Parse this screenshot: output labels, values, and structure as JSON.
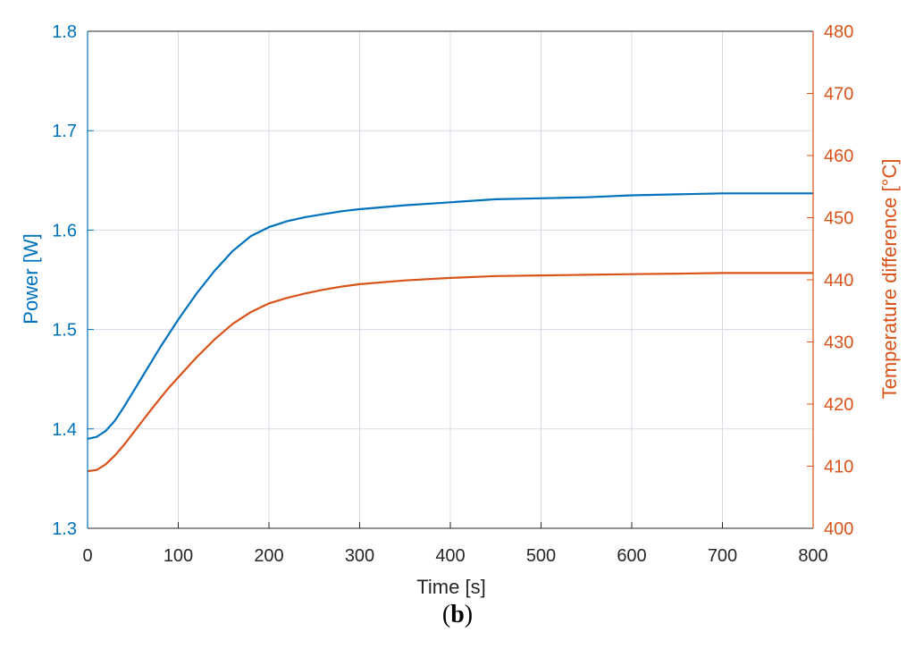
{
  "caption": {
    "open": "(",
    "letter": "b",
    "close": ")"
  },
  "colors": {
    "left": "#0072BD",
    "right": "#D95319",
    "grid": "#D5DCE6",
    "axis": "#262626"
  },
  "chart_data": {
    "type": "line",
    "xlabel": "Time [s]",
    "ylabel_left": "Power [W]",
    "ylabel_right": "Temperature difference [°C]",
    "xlim": [
      0,
      800
    ],
    "ylim_left": [
      1.3,
      1.8
    ],
    "ylim_right": [
      400,
      480
    ],
    "x_ticks": [
      "0",
      "100",
      "200",
      "300",
      "400",
      "500",
      "600",
      "700",
      "800"
    ],
    "y_left_ticks": [
      "1.3",
      "1.4",
      "1.5",
      "1.6",
      "1.7",
      "1.8"
    ],
    "y_right_ticks": [
      "400",
      "410",
      "420",
      "430",
      "440",
      "450",
      "460",
      "470",
      "480"
    ],
    "grid": true,
    "series": [
      {
        "name": "",
        "axis": "left",
        "color": "#0072BD",
        "x": [
          0,
          10,
          20,
          30,
          40,
          50,
          60,
          70,
          80,
          90,
          100,
          120,
          140,
          160,
          180,
          200,
          220,
          240,
          260,
          280,
          300,
          350,
          400,
          450,
          500,
          550,
          600,
          650,
          700,
          750,
          800
        ],
        "y": [
          1.39,
          1.392,
          1.398,
          1.408,
          1.422,
          1.437,
          1.452,
          1.467,
          1.482,
          1.496,
          1.51,
          1.536,
          1.559,
          1.579,
          1.594,
          1.603,
          1.609,
          1.613,
          1.616,
          1.619,
          1.621,
          1.625,
          1.628,
          1.631,
          1.632,
          1.633,
          1.635,
          1.636,
          1.637,
          1.637,
          1.637
        ]
      },
      {
        "name": "",
        "axis": "right",
        "color": "#D95319",
        "x": [
          0,
          10,
          20,
          30,
          40,
          50,
          60,
          70,
          80,
          90,
          100,
          120,
          140,
          160,
          180,
          200,
          220,
          240,
          260,
          280,
          300,
          350,
          400,
          450,
          500,
          550,
          600,
          650,
          700,
          750,
          800
        ],
        "y": [
          409.2,
          409.4,
          410.3,
          411.7,
          413.4,
          415.3,
          417.2,
          419.1,
          420.9,
          422.7,
          424.3,
          427.5,
          430.4,
          432.9,
          434.8,
          436.2,
          437.1,
          437.8,
          438.4,
          438.9,
          439.3,
          439.9,
          440.3,
          440.6,
          440.7,
          440.8,
          440.9,
          441.0,
          441.1,
          441.1,
          441.1
        ]
      }
    ]
  }
}
